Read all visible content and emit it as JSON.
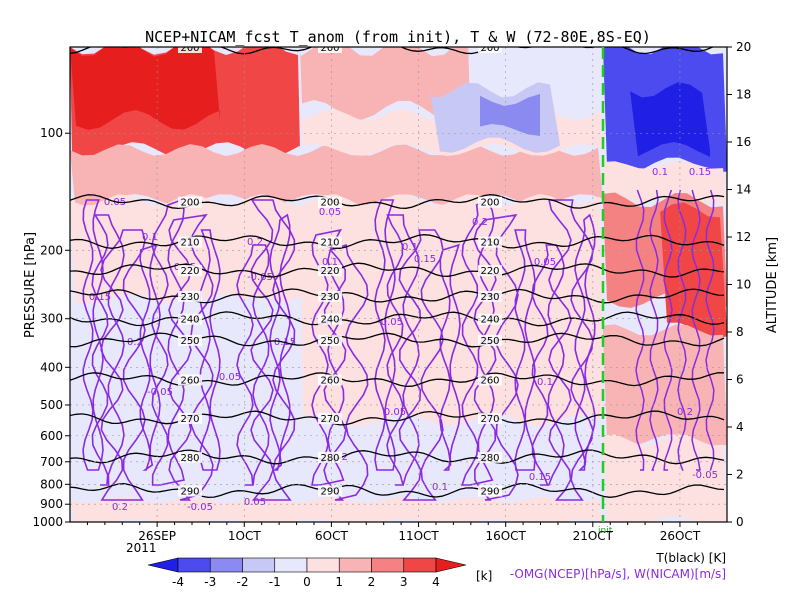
{
  "chart_data": {
    "type": "heatmap",
    "title": "NCEP+NICAM_fcst T_anom (from init), T & W  (72-80E,8S-EQ)",
    "ylabel_left": "PRESSURE [hPa]",
    "ylabel_right": "ALTITUDE [km]",
    "pressure_ticks": [
      100,
      200,
      300,
      400,
      500,
      600,
      700,
      800,
      900,
      1000
    ],
    "altitude_ticks": [
      0,
      2,
      4,
      6,
      8,
      10,
      12,
      14,
      16,
      18,
      20
    ],
    "pressure_range": [
      1000,
      60
    ],
    "altitude_range": [
      0,
      20
    ],
    "x_ticks": [
      "26SEP",
      "1OCT",
      "6OCT",
      "11OCT",
      "16OCT",
      "21OCT",
      "26OCT"
    ],
    "x_year_label": "2011",
    "init_marker_label": "init",
    "colorbar": {
      "ticks": [
        "-4",
        "-3",
        "-2",
        "-1",
        "0",
        "1",
        "2",
        "3",
        "4"
      ],
      "unit": "[k]",
      "colors": [
        "#1f1fe6",
        "#4b4bf0",
        "#8a8af0",
        "#c8c8f6",
        "#e8e8fc",
        "#fde0e0",
        "#f8b4b4",
        "#f48282",
        "#f04646",
        "#e61e1e"
      ]
    },
    "temperature_contours": {
      "label": "T(black) [K]",
      "levels": [
        200,
        200,
        210,
        220,
        230,
        240,
        250,
        260,
        270,
        280,
        290
      ],
      "pressure_approx": [
        60,
        150,
        190,
        225,
        262,
        300,
        340,
        430,
        540,
        680,
        830
      ]
    },
    "omega_label": "-OMG(NCEP)[hPa/s], W(NICAM)[m/s]",
    "omega_contour_levels": [
      "0.05",
      "0.1",
      "0.15",
      "0.2",
      "-0.05"
    ],
    "anomaly_bands": [
      {
        "pressure_top": 60,
        "pressure_bottom": 130,
        "anomaly": 3,
        "period": "early"
      },
      {
        "pressure_top": 130,
        "pressure_bottom": 200,
        "anomaly": 1,
        "period": "all"
      },
      {
        "pressure_top": 200,
        "pressure_bottom": 1000,
        "anomaly": -1,
        "period": "ncep"
      },
      {
        "pressure_top": 60,
        "pressure_bottom": 130,
        "anomaly": -3,
        "period": "forecast"
      },
      {
        "pressure_top": 150,
        "pressure_bottom": 300,
        "anomaly": 2,
        "period": "forecast"
      }
    ]
  }
}
